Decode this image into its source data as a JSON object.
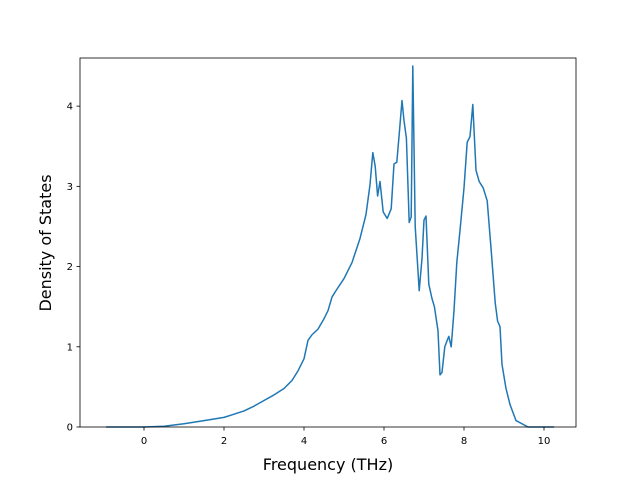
{
  "chart_data": {
    "type": "line",
    "title": "",
    "xlabel": "Frequency (THz)",
    "ylabel": "Density of States",
    "xlim": [
      -1.6,
      10.8
    ],
    "ylim": [
      0,
      4.6
    ],
    "xticks": [
      0,
      2,
      4,
      6,
      8,
      10
    ],
    "yticks": [
      0,
      1,
      2,
      3,
      4
    ],
    "xtick_labels": [
      "0",
      "2",
      "4",
      "6",
      "8",
      "10"
    ],
    "ytick_labels": [
      "0",
      "1",
      "2",
      "3",
      "4"
    ],
    "grid": false,
    "legend": "none",
    "series": [
      {
        "color": "#1f77b4",
        "x": [
          -0.95,
          0.0,
          0.5,
          1.0,
          1.5,
          1.75,
          2.0,
          2.25,
          2.5,
          2.75,
          3.0,
          3.25,
          3.5,
          3.7,
          3.85,
          4.0,
          4.1,
          4.2,
          4.35,
          4.5,
          4.6,
          4.7,
          4.8,
          5.0,
          5.2,
          5.4,
          5.55,
          5.65,
          5.72,
          5.78,
          5.84,
          5.9,
          5.98,
          6.08,
          6.18,
          6.25,
          6.32,
          6.38,
          6.45,
          6.5,
          6.56,
          6.63,
          6.68,
          6.72,
          6.78,
          6.88,
          6.95,
          7.0,
          7.05,
          7.12,
          7.2,
          7.26,
          7.35,
          7.4,
          7.45,
          7.52,
          7.58,
          7.62,
          7.68,
          7.75,
          7.82,
          7.9,
          8.0,
          8.08,
          8.15,
          8.22,
          8.3,
          8.38,
          8.48,
          8.58,
          8.68,
          8.78,
          8.84,
          8.9,
          8.95,
          9.05,
          9.15,
          9.3,
          9.6,
          10.0,
          10.25
        ],
        "y": [
          0,
          0,
          0.01,
          0.04,
          0.08,
          0.1,
          0.12,
          0.16,
          0.2,
          0.26,
          0.33,
          0.4,
          0.48,
          0.58,
          0.7,
          0.85,
          1.08,
          1.15,
          1.22,
          1.35,
          1.45,
          1.62,
          1.7,
          1.85,
          2.05,
          2.35,
          2.65,
          3.02,
          3.42,
          3.25,
          2.88,
          3.06,
          2.68,
          2.6,
          2.72,
          3.28,
          3.3,
          3.65,
          4.07,
          3.82,
          3.6,
          2.55,
          2.62,
          4.5,
          2.5,
          1.7,
          2.1,
          2.58,
          2.63,
          1.78,
          1.6,
          1.5,
          1.2,
          0.65,
          0.68,
          1.0,
          1.08,
          1.13,
          1.0,
          1.45,
          2.05,
          2.45,
          2.98,
          3.55,
          3.62,
          4.02,
          3.2,
          3.06,
          2.98,
          2.82,
          2.2,
          1.55,
          1.32,
          1.25,
          0.78,
          0.48,
          0.28,
          0.08,
          0.0,
          0.0,
          0.0
        ]
      }
    ]
  }
}
